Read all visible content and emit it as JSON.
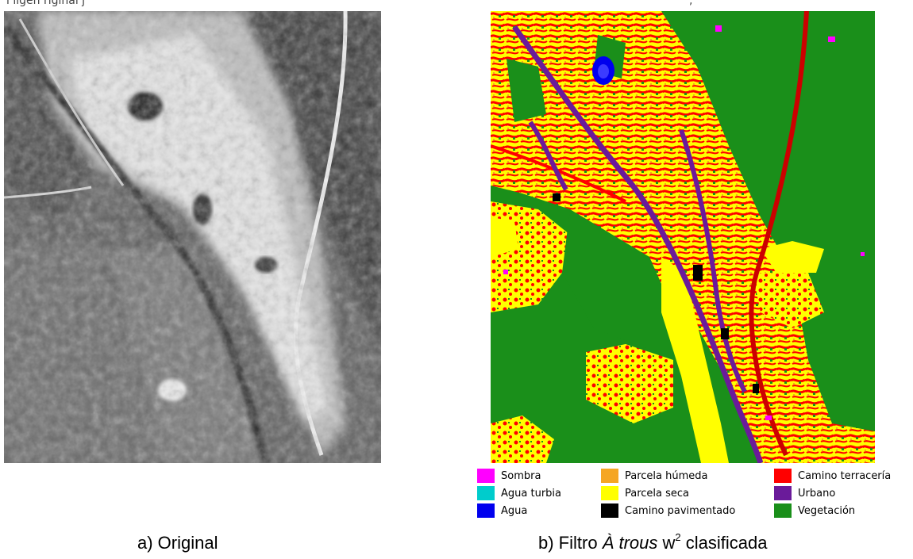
{
  "top_fragment": {
    "left": "l      ligen      riginal        j",
    "right": ","
  },
  "legend": {
    "items": [
      {
        "label": "Sombra",
        "color": "#ff00ff"
      },
      {
        "label": "Agua turbia",
        "color": "#00cccc"
      },
      {
        "label": "Agua",
        "color": "#0000ee"
      },
      {
        "label": "Parcela húmeda",
        "color": "#f5a623"
      },
      {
        "label": "Parcela seca",
        "color": "#ffff00"
      },
      {
        "label": "Camino pavimentado",
        "color": "#000000"
      },
      {
        "label": "Camino terracería",
        "color": "#ff0000"
      },
      {
        "label": "Urbano",
        "color": "#6a1b9a"
      },
      {
        "label": "Vegetación",
        "color": "#1a8f1a"
      }
    ]
  },
  "captions": {
    "a": "a) Original",
    "b_prefix": "b) Filtro ",
    "b_italic": "À trous",
    "b_w": " w",
    "b_sup": "2",
    "b_suffix": " clasificada"
  }
}
